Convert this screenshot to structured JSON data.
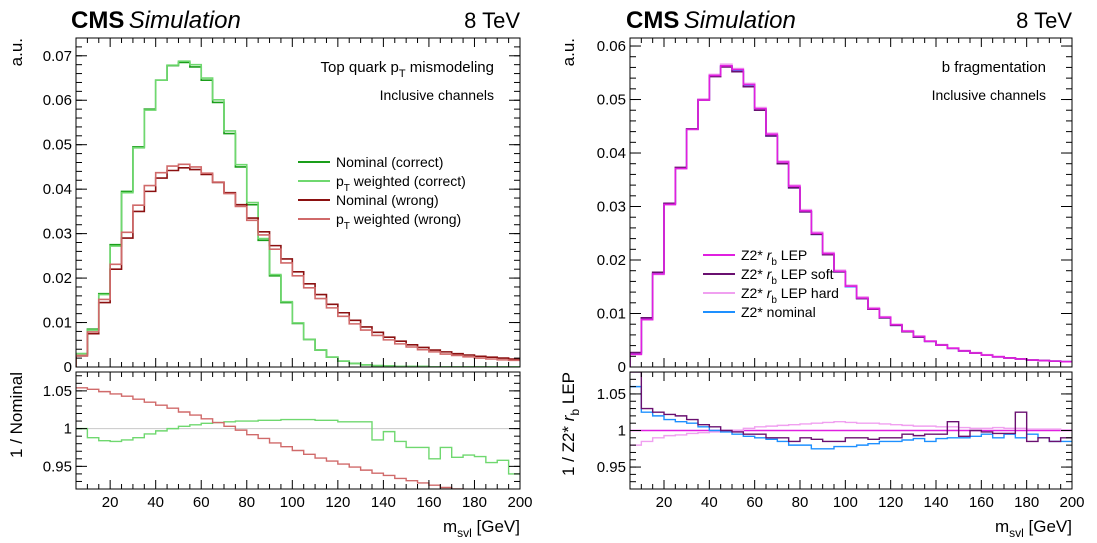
{
  "chart_data": [
    {
      "type": "line",
      "header": {
        "experiment": "CMS",
        "label": "Simulation",
        "energy": "8 TeV"
      },
      "annotation": {
        "line1_pre": "Top quark p",
        "line1_sub": "T",
        "line1_post": " mismodeling",
        "line2": "Inclusive channels"
      },
      "xlabel_main": "m",
      "xlabel_sub": "svl",
      "xlabel_unit": " [GeV]",
      "ylabel_top": "a.u.",
      "ylabel_bottom": "1 / Nominal",
      "xlim": [
        5,
        200
      ],
      "xticks": [
        20,
        40,
        60,
        80,
        100,
        120,
        140,
        160,
        180,
        200
      ],
      "top_ylim": [
        0,
        0.074
      ],
      "top_yticks": [
        0,
        0.01,
        0.02,
        0.03,
        0.04,
        0.05,
        0.06,
        0.07
      ],
      "top_ytick_labels": [
        "0",
        "0.01",
        "0.02",
        "0.03",
        "0.04",
        "0.05",
        "0.06",
        "0.07"
      ],
      "bottom_ylim": [
        0.92,
        1.075
      ],
      "bottom_yticks": [
        0.95,
        1,
        1.05
      ],
      "bottom_ytick_labels": [
        "0.95",
        "1",
        "1.05"
      ],
      "ratio_reference_color": "#c8c8c8",
      "legend": [
        {
          "pre": "Nominal (correct)",
          "sub": "",
          "post": "",
          "color": "#1a9e1a"
        },
        {
          "pre": "p",
          "sub": "T",
          "post": " weighted (correct)",
          "color": "#6fd86f"
        },
        {
          "pre": "Nominal (wrong)",
          "sub": "",
          "post": "",
          "color": "#8b1010"
        },
        {
          "pre": "p",
          "sub": "T",
          "post": " weighted (wrong)",
          "color": "#d06a6a"
        }
      ],
      "bin_width": 5,
      "top_series": [
        {
          "color": "#1a9e1a",
          "values": [
            0.003,
            0.0085,
            0.0165,
            0.0275,
            0.0395,
            0.0495,
            0.058,
            0.0645,
            0.0678,
            0.0685,
            0.0675,
            0.0645,
            0.0595,
            0.0525,
            0.045,
            0.0365,
            0.0285,
            0.0205,
            0.0145,
            0.0098,
            0.0062,
            0.0038,
            0.0022,
            0.0013,
            0.0008,
            0.0005,
            0.0003,
            0.0002,
            0.0001,
            0.0001,
            0.0001,
            0.0,
            0.0,
            0.0,
            0.0,
            0.0,
            0.0,
            0.0,
            0.0
          ]
        },
        {
          "color": "#6fd86f",
          "values": [
            0.003,
            0.0083,
            0.0163,
            0.0272,
            0.0392,
            0.0493,
            0.0578,
            0.0645,
            0.0679,
            0.0688,
            0.068,
            0.065,
            0.0601,
            0.0531,
            0.0455,
            0.037,
            0.0289,
            0.0208,
            0.0147,
            0.0099,
            0.0062,
            0.0038,
            0.0022,
            0.0013,
            0.0008,
            0.0005,
            0.0003,
            0.0002,
            0.0001,
            0.0001,
            0.0001,
            0.0,
            0.0,
            0.0,
            0.0,
            0.0,
            0.0,
            0.0,
            0.0
          ]
        },
        {
          "color": "#8b1010",
          "values": [
            0.0025,
            0.0075,
            0.0145,
            0.022,
            0.029,
            0.035,
            0.0395,
            0.0425,
            0.0442,
            0.0448,
            0.0444,
            0.0433,
            0.0415,
            0.0392,
            0.0365,
            0.0335,
            0.0304,
            0.0273,
            0.0243,
            0.0214,
            0.0187,
            0.0163,
            0.0141,
            0.0122,
            0.0105,
            0.009,
            0.0078,
            0.0067,
            0.0058,
            0.005,
            0.0044,
            0.0038,
            0.0034,
            0.003,
            0.0027,
            0.0024,
            0.0022,
            0.002,
            0.0018
          ]
        },
        {
          "color": "#d06a6a",
          "values": [
            0.0026,
            0.0079,
            0.0152,
            0.0231,
            0.0303,
            0.0364,
            0.0408,
            0.0437,
            0.0452,
            0.0456,
            0.045,
            0.0436,
            0.0416,
            0.039,
            0.0361,
            0.033,
            0.0297,
            0.0265,
            0.0234,
            0.0205,
            0.0178,
            0.0154,
            0.0133,
            0.0114,
            0.0097,
            0.0083,
            0.0071,
            0.0061,
            0.0052,
            0.0045,
            0.0039,
            0.0034,
            0.0029,
            0.0026,
            0.0023,
            0.002,
            0.0018,
            0.0016,
            0.0015
          ]
        }
      ],
      "bottom_series": [
        {
          "color": "#6fd86f",
          "values": [
            1.0,
            0.988,
            0.984,
            0.983,
            0.985,
            0.988,
            0.993,
            0.997,
            1.0,
            1.003,
            1.005,
            1.007,
            1.008,
            1.009,
            1.01,
            1.01,
            1.011,
            1.011,
            1.012,
            1.012,
            1.012,
            1.011,
            1.011,
            1.009,
            1.009,
            1.009,
            0.985,
            0.996,
            0.983,
            0.975,
            0.975,
            0.96,
            0.975,
            0.962,
            0.965,
            0.963,
            0.955,
            0.958,
            0.94
          ]
        },
        {
          "color": "#d06a6a",
          "values": [
            1.054,
            1.052,
            1.049,
            1.046,
            1.043,
            1.039,
            1.035,
            1.031,
            1.027,
            1.022,
            1.018,
            1.013,
            1.008,
            1.003,
            0.998,
            0.992,
            0.987,
            0.981,
            0.976,
            0.971,
            0.966,
            0.961,
            0.957,
            0.953,
            0.949,
            0.945,
            0.941,
            0.938,
            0.934,
            0.931,
            0.928,
            0.925,
            0.922,
            0.92,
            0.918,
            0.916,
            0.914,
            0.912,
            0.91
          ]
        }
      ]
    },
    {
      "type": "line",
      "header": {
        "experiment": "CMS",
        "label": "Simulation",
        "energy": "8 TeV"
      },
      "annotation": {
        "line1_pre": "b fragmentation",
        "line1_sub": "",
        "line1_post": "",
        "line2": "Inclusive channels"
      },
      "xlabel_main": "m",
      "xlabel_sub": "svl",
      "xlabel_unit": " [GeV]",
      "ylabel_top": "a.u.",
      "ylabel_bottom_pre": "1 / Z2* ",
      "ylabel_bottom_italic": "r",
      "ylabel_bottom_sub": "b",
      "ylabel_bottom_post": " LEP",
      "xlim": [
        5,
        200
      ],
      "xticks": [
        20,
        40,
        60,
        80,
        100,
        120,
        140,
        160,
        180,
        200
      ],
      "top_ylim": [
        0,
        0.0615
      ],
      "top_yticks": [
        0,
        0.01,
        0.02,
        0.03,
        0.04,
        0.05,
        0.06
      ],
      "top_ytick_labels": [
        "0",
        "0.01",
        "0.02",
        "0.03",
        "0.04",
        "0.05",
        "0.06"
      ],
      "bottom_ylim": [
        0.92,
        1.08
      ],
      "bottom_yticks": [
        0.95,
        1,
        1.05
      ],
      "bottom_ytick_labels": [
        "0.95",
        "1",
        "1.05"
      ],
      "ratio_reference_color": "#c8c8c8",
      "legend": [
        {
          "pre": "Z2* ",
          "italic": "r",
          "sub": "b",
          "post": " LEP",
          "color": "#e020e0"
        },
        {
          "pre": "Z2* ",
          "italic": "r",
          "sub": "b",
          "post": " LEP soft",
          "color": "#6a1070"
        },
        {
          "pre": "Z2* ",
          "italic": "r",
          "sub": "b",
          "post": " LEP hard",
          "color": "#f0a0f0"
        },
        {
          "pre": "Z2* nominal",
          "italic": "",
          "sub": "",
          "post": "",
          "color": "#1e90ff"
        }
      ],
      "bin_width": 5,
      "top_series": [
        {
          "color": "#1e90ff",
          "values": [
            0.0025,
            0.009,
            0.0175,
            0.0305,
            0.0372,
            0.0445,
            0.05,
            0.0545,
            0.0563,
            0.0554,
            0.0525,
            0.048,
            0.0432,
            0.038,
            0.0335,
            0.029,
            0.0248,
            0.021,
            0.0178,
            0.015,
            0.0128,
            0.0108,
            0.0092,
            0.0078,
            0.0066,
            0.0056,
            0.0048,
            0.0041,
            0.0035,
            0.003,
            0.0026,
            0.0022,
            0.0019,
            0.0017,
            0.0015,
            0.0013,
            0.0012,
            0.0011,
            0.001
          ]
        },
        {
          "color": "#f0a0f0",
          "values": [
            0.0023,
            0.0088,
            0.0173,
            0.0303,
            0.0371,
            0.0445,
            0.0501,
            0.0547,
            0.0566,
            0.0558,
            0.053,
            0.0485,
            0.0437,
            0.0385,
            0.034,
            0.0294,
            0.0252,
            0.0214,
            0.0181,
            0.0153,
            0.0131,
            0.0111,
            0.0094,
            0.008,
            0.0068,
            0.0058,
            0.0049,
            0.0042,
            0.0036,
            0.0031,
            0.0027,
            0.0023,
            0.002,
            0.0017,
            0.0015,
            0.0013,
            0.0012,
            0.0011,
            0.001
          ]
        },
        {
          "color": "#6a1070",
          "values": [
            0.0027,
            0.0092,
            0.0177,
            0.0306,
            0.0373,
            0.0445,
            0.0499,
            0.0543,
            0.0561,
            0.0552,
            0.0524,
            0.048,
            0.0432,
            0.038,
            0.0335,
            0.029,
            0.0248,
            0.021,
            0.0178,
            0.0151,
            0.0128,
            0.0108,
            0.0092,
            0.0078,
            0.0066,
            0.0056,
            0.0048,
            0.0041,
            0.0035,
            0.003,
            0.0026,
            0.0022,
            0.0019,
            0.0017,
            0.0015,
            0.0013,
            0.0012,
            0.0011,
            0.001
          ]
        },
        {
          "color": "#e020e0",
          "values": [
            0.0024,
            0.0089,
            0.0174,
            0.0304,
            0.0371,
            0.0444,
            0.0499,
            0.0545,
            0.0563,
            0.0556,
            0.0528,
            0.0483,
            0.0435,
            0.0383,
            0.0338,
            0.0292,
            0.025,
            0.0212,
            0.0179,
            0.0151,
            0.0129,
            0.0109,
            0.0093,
            0.0079,
            0.0067,
            0.0057,
            0.0048,
            0.0041,
            0.0035,
            0.003,
            0.0026,
            0.0022,
            0.0019,
            0.0017,
            0.0015,
            0.0013,
            0.0012,
            0.0011,
            0.001
          ]
        }
      ],
      "bottom_series": [
        {
          "color": "#e020e0",
          "values": [
            1.0,
            1.0,
            1.0,
            1.0,
            1.0,
            1.0,
            1.0,
            1.0,
            1.0,
            1.0,
            1.0,
            1.0,
            1.0,
            1.0,
            1.0,
            1.0,
            1.0,
            1.0,
            1.0,
            1.0,
            1.0,
            1.0,
            1.0,
            1.0,
            1.0,
            1.0,
            1.0,
            1.0,
            1.0,
            1.0,
            1.0,
            1.0,
            1.0,
            1.0,
            1.0,
            1.0,
            1.0,
            1.0,
            1.0
          ]
        },
        {
          "color": "#f0a0f0",
          "values": [
            0.98,
            0.985,
            0.99,
            0.993,
            0.994,
            0.996,
            0.997,
            0.998,
            0.999,
            1.0,
            1.003,
            1.005,
            1.006,
            1.007,
            1.008,
            1.009,
            1.01,
            1.011,
            1.012,
            1.011,
            1.01,
            1.01,
            1.009,
            1.008,
            1.007,
            1.006,
            1.006,
            1.005,
            1.005,
            1.004,
            1.003,
            1.003,
            1.004,
            1.003,
            1.003,
            1.002,
            1.002,
            1.002,
            1.001
          ]
        },
        {
          "color": "#1e90ff",
          "values": [
            1.06,
            1.025,
            1.02,
            1.015,
            1.012,
            1.01,
            1.005,
            1.0,
            0.998,
            0.995,
            0.992,
            0.99,
            0.988,
            0.985,
            0.98,
            0.98,
            0.975,
            0.975,
            0.978,
            0.978,
            0.98,
            0.982,
            0.985,
            0.985,
            0.987,
            0.989,
            0.985,
            0.989,
            0.99,
            0.99,
            0.992,
            0.995,
            0.99,
            0.995,
            0.99,
            0.995,
            0.99,
            0.985,
            0.985
          ]
        },
        {
          "color": "#6a1070",
          "values": [
            1.08,
            1.03,
            1.025,
            1.022,
            1.02,
            1.015,
            1.008,
            1.005,
            1.0,
            0.998,
            0.995,
            0.995,
            0.99,
            0.99,
            0.985,
            0.99,
            0.988,
            0.985,
            0.985,
            0.99,
            0.99,
            0.988,
            0.99,
            0.99,
            0.995,
            0.993,
            0.995,
            0.995,
            1.012,
            0.992,
            1.0,
            0.998,
            0.996,
            0.996,
            1.025,
            0.985,
            0.99,
            0.985,
            0.99
          ]
        }
      ]
    }
  ]
}
